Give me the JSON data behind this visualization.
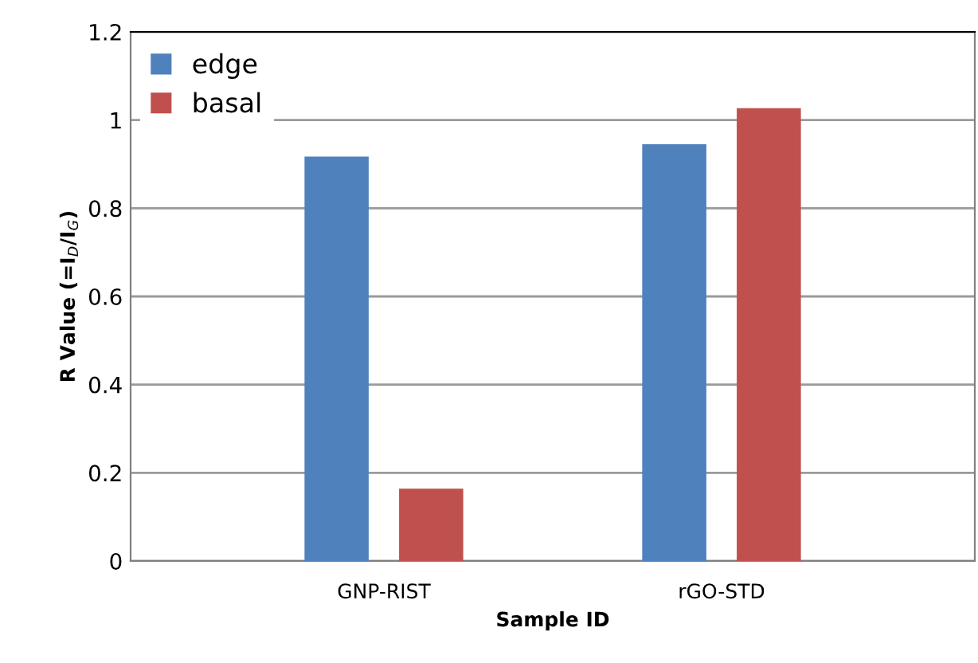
{
  "chart_data": {
    "type": "bar",
    "xlabel": "Sample ID",
    "ylabel": "R Value (=I$_{D}$/I$_{G}$)",
    "categories": [
      "GNP-RIST",
      "rGO-STD"
    ],
    "series": [
      {
        "name": "edge",
        "color": "#4f81bd",
        "values": [
          0.917,
          0.945
        ]
      },
      {
        "name": "basal",
        "color": "#c0504d",
        "values": [
          0.164,
          1.027
        ]
      }
    ],
    "ylim": [
      0,
      1.2
    ],
    "yticks": [
      0,
      0.2,
      0.4,
      0.6,
      0.8,
      1,
      1.2
    ],
    "grid": "y",
    "legend": "top left"
  }
}
